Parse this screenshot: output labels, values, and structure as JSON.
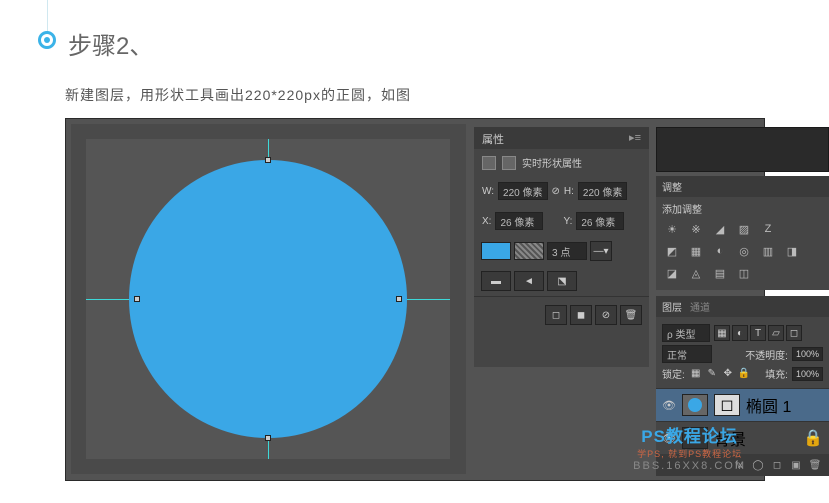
{
  "step": {
    "title": "步骤2、",
    "desc": "新建图层，用形状工具画出220*220px的正圆，如图"
  },
  "canvas": {
    "circle_color": "#3aa7e6",
    "circle_size": 278,
    "guide_color": "#3dd8d8",
    "bg_color": "#555555"
  },
  "properties": {
    "panel_title": "属性",
    "shape_label": "实时形状属性",
    "w_label": "W:",
    "w_value": "220 像素",
    "h_label": "H:",
    "h_value": "220 像素",
    "x_label": "X:",
    "x_value": "26 像素",
    "y_label": "Y:",
    "y_value": "26 像素",
    "stroke_fill_color": "#3aa7e6",
    "stroke_color": "#ffffff",
    "stroke_width": "3 点",
    "link_icon": "⊘"
  },
  "adjustments": {
    "tab": "调整",
    "label": "添加调整",
    "icons_r1": [
      "☀",
      "※",
      "◢",
      "▨",
      "Z"
    ],
    "icons_r2": [
      "◩",
      "▦",
      "◐",
      "◎",
      "▥",
      "◨"
    ],
    "icons_r3": [
      "◪",
      "◬",
      "▤",
      "◫"
    ]
  },
  "layers": {
    "tab1": "图层",
    "tab2": "通道",
    "kind_label": "ρ 类型",
    "blend_mode": "正常",
    "opacity_label": "不透明度:",
    "opacity_value": "100%",
    "lock_label": "锁定:",
    "fill_label": "填充:",
    "fill_value": "100%",
    "layer1_name": "椭圆 1",
    "layer2_name": "背景",
    "footer_icons": [
      "fx",
      "◯",
      "◻",
      "▣",
      "🗑"
    ]
  },
  "watermark": {
    "line1": "PS教程论坛",
    "line1_color": "#3aa7e6",
    "line2": "学PS, 就到PS教程论坛",
    "line2_color": "#cc6644",
    "line3": "BBS.16XX8.COM"
  }
}
